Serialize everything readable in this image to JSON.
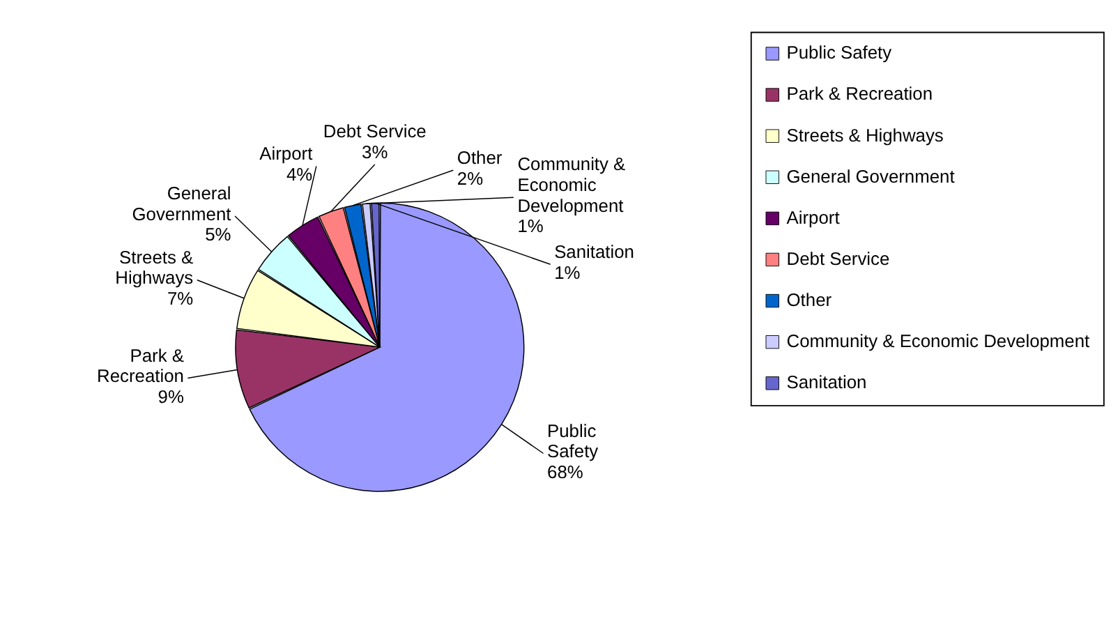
{
  "chart_data": {
    "type": "pie",
    "categories": [
      "Public Safety",
      "Park & Recreation",
      "Streets & Highways",
      "General Government",
      "Airport",
      "Debt Service",
      "Other",
      "Community & Economic Development",
      "Sanitation"
    ],
    "values": [
      68,
      9,
      7,
      5,
      4,
      3,
      2,
      1,
      1
    ],
    "value_labels": [
      "68%",
      "9%",
      "7%",
      "5%",
      "4%",
      "3%",
      "2%",
      "1%",
      "1%"
    ],
    "colors": [
      "#9999ff",
      "#993366",
      "#ffffcc",
      "#ccffff",
      "#660066",
      "#ff8080",
      "#0066cc",
      "#ccccff",
      "#6666cc"
    ],
    "legend": "right"
  }
}
